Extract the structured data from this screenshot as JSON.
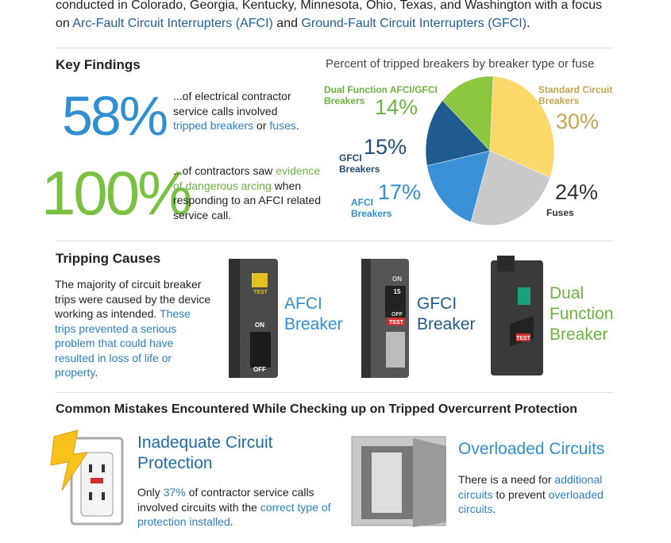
{
  "intro": [
    "conducted in Colorado, Georgia, Kentucky, Minnesota, Ohio, Texas, and Washington with a focus on ",
    "Arc-Fault Circuit Interrupters (AFCI)",
    " and ",
    "Ground-Fault Circuit Interrupters (GFCI)",
    "."
  ],
  "key_findings": {
    "title": "Key Findings",
    "findings": [
      {
        "stat": "58%",
        "text": [
          "...of electrical contractor service calls involved ",
          "tripped breakers",
          " or ",
          "fuses",
          "."
        ]
      },
      {
        "stat": "100%",
        "text": [
          "...of contractors saw ",
          "evidence of dangerous arcing",
          " when responding to an AFCI related service call."
        ]
      }
    ]
  },
  "chart_data": {
    "type": "pie",
    "title": "Percent of tripped breakers by breaker type or fuse",
    "categories": [
      "Standard Circuit Breakers",
      "Fuses",
      "AFCI Breakers",
      "GFCI Breakers",
      "Dual Function AFCI/GFCI Breakers"
    ],
    "values": [
      30,
      24,
      17,
      15,
      14
    ],
    "value_labels": [
      "30%",
      "24%",
      "17%",
      "15%",
      "14%"
    ],
    "colors": [
      "#fcd86b",
      "#c9c9c9",
      "#3b91d6",
      "#1f5b8e",
      "#8dc63f"
    ]
  },
  "tripping_causes": {
    "title": "Tripping Causes",
    "text": [
      "The majority of circuit breaker trips were caused by the device working as intended. ",
      "These trips prevented a serious problem that could have resulted in loss of life or property",
      "."
    ],
    "breakers": [
      {
        "label": "AFCI Breaker",
        "marks": [
          "TEST",
          "ON",
          "OFF"
        ]
      },
      {
        "label": "GFCI Breaker",
        "marks": [
          "ON",
          "15",
          "OFF",
          "TEST"
        ]
      },
      {
        "label": "Dual Function Breaker",
        "marks": [
          "TEST"
        ]
      }
    ]
  },
  "mistakes": {
    "title": "Common Mistakes Encountered While Checking up on Tripped Overcurrent Protection",
    "items": [
      {
        "title": "Inadequate Circuit Protection",
        "text": [
          "Only ",
          "37%",
          " of contractor service calls involved circuits with the ",
          "correct type of protection installed",
          "."
        ]
      },
      {
        "title": "Overloaded Circuits",
        "text": [
          "There is a need for ",
          "additional circuits",
          " to prevent ",
          "overloaded circuits",
          "."
        ]
      }
    ]
  }
}
